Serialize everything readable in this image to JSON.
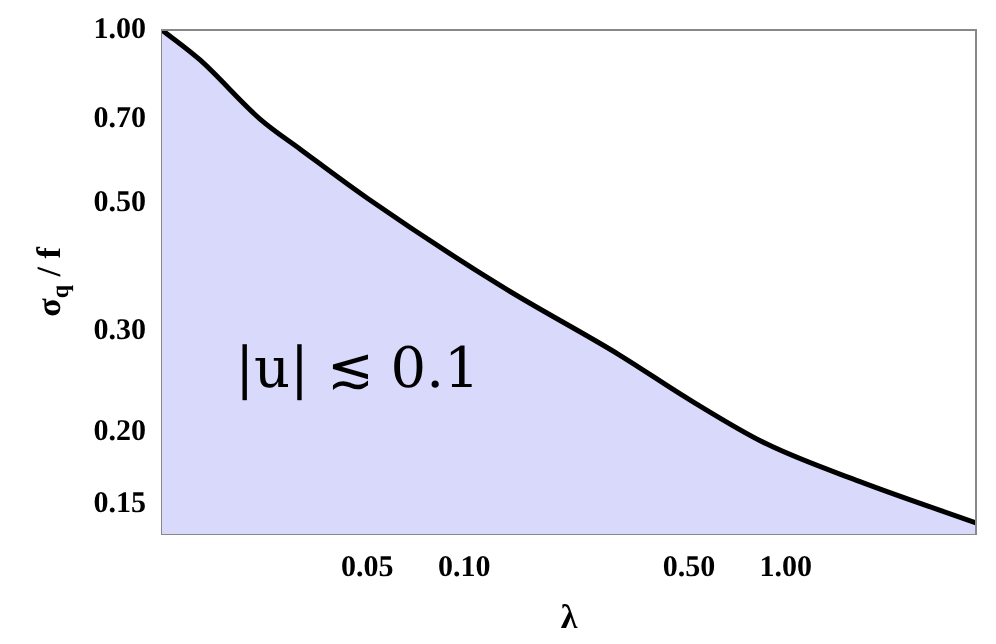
{
  "chart_data": {
    "type": "area",
    "xlabel": "λ",
    "ylabel": "σ$_{q}$ / f",
    "log": "xy",
    "grid": false,
    "x": [
      0.0115,
      0.0151,
      0.0232,
      0.031,
      0.05,
      0.129,
      0.305,
      0.5,
      0.867,
      1.7,
      3.9
    ],
    "series": [
      {
        "color": "#d9d9fb",
        "values": [
          1.0,
          0.887,
          0.7,
          0.62,
          0.51,
          0.36,
          0.272,
          0.228,
          0.191,
          0.164,
          0.139
        ]
      }
    ],
    "xlim": [
      0.0115,
      3.9
    ],
    "ylim": [
      0.133,
      1.0
    ],
    "xticks": [
      {
        "value": 0.05,
        "label": "0.05"
      },
      {
        "value": 0.1,
        "label": "0.10"
      },
      {
        "value": 0.5,
        "label": "0.50"
      },
      {
        "value": 1,
        "label": "1.00"
      }
    ],
    "yticks": [
      {
        "value": 0.15,
        "label": "0.15"
      },
      {
        "value": 0.2,
        "label": "0.20"
      },
      {
        "value": 0.3,
        "label": "0.30"
      },
      {
        "value": 0.5,
        "label": "0.50"
      },
      {
        "value": 0.7,
        "label": "0.70"
      },
      {
        "value": 1,
        "label": "1.00"
      }
    ],
    "annotations": [
      "|u| ≲ 0.1"
    ]
  }
}
